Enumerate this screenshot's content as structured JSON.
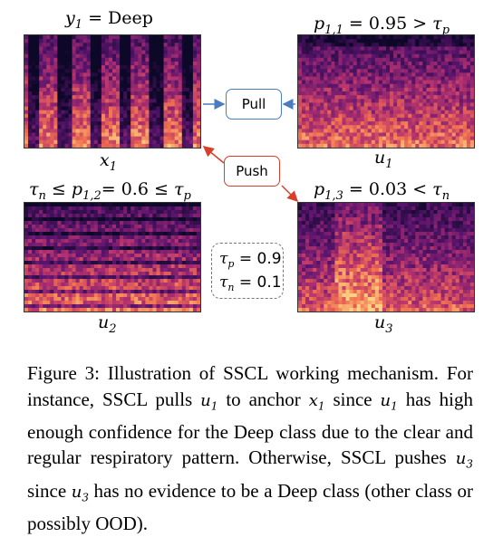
{
  "labels": {
    "x1_title": "y",
    "x1_title_sub": "1",
    "x1_title_rest": "= Deep",
    "u1_title_var": "p",
    "u1_title_sub": "1,1",
    "u1_title_rest": "= 0.95 > ",
    "u1_title_tau": "τ",
    "u1_title_tau_sub": "p",
    "u2_title_tau": "τ",
    "u2_title_tau_sub": "n",
    "u2_title_mid": " ≤ ",
    "u2_title_var": "p",
    "u2_title_sub": "1,2",
    "u2_title_rest": "= 0.6 ≤ ",
    "u2_title_tau2": "τ",
    "u2_title_tau2_sub": "p",
    "u3_title_var": "p",
    "u3_title_sub": "1,3",
    "u3_title_rest": "= 0.03 < ",
    "u3_title_tau": "τ",
    "u3_title_tau_sub": "n",
    "x1_name": "x",
    "x1_name_sub": "1",
    "u1_name": "u",
    "u1_name_sub": "1",
    "u2_name": "u",
    "u2_name_sub": "2",
    "u3_name": "u",
    "u3_name_sub": "3"
  },
  "buttons": {
    "pull": "Pull",
    "push": "Push"
  },
  "thresholds": {
    "tau_p_sym": "τ",
    "tau_p_sub": "p",
    "tau_p_val": " = 0.9",
    "tau_n_sym": "τ",
    "tau_n_sub": "n",
    "tau_n_val": " = 0.1"
  },
  "caption": {
    "p1": "Figure 3: Illustration of SSCL working mechanism. For instance, SSCL pulls ",
    "v1": "u",
    "v1s": "1",
    "p2": " to anchor ",
    "v2": "x",
    "v2s": "1",
    "p3": " since ",
    "v3": "u",
    "v3s": "1",
    "p4": " has high enough confidence for the Deep class due to the clear and regular respiratory pattern. Otherwise, SSCL pushes ",
    "v4": "u",
    "v4s": "3",
    "p5": " since ",
    "v5": "u",
    "v5s": "3",
    "p6": " has no evidence to be a Deep class (other class or possibly OOD)."
  },
  "colors": {
    "pull_border": "#4a7cc2",
    "push_border": "#d9402b",
    "spectrogram_dark": "#1a0b3a",
    "spectrogram_mid": "#a3307e",
    "spectrogram_bright": "#fcb46e"
  }
}
